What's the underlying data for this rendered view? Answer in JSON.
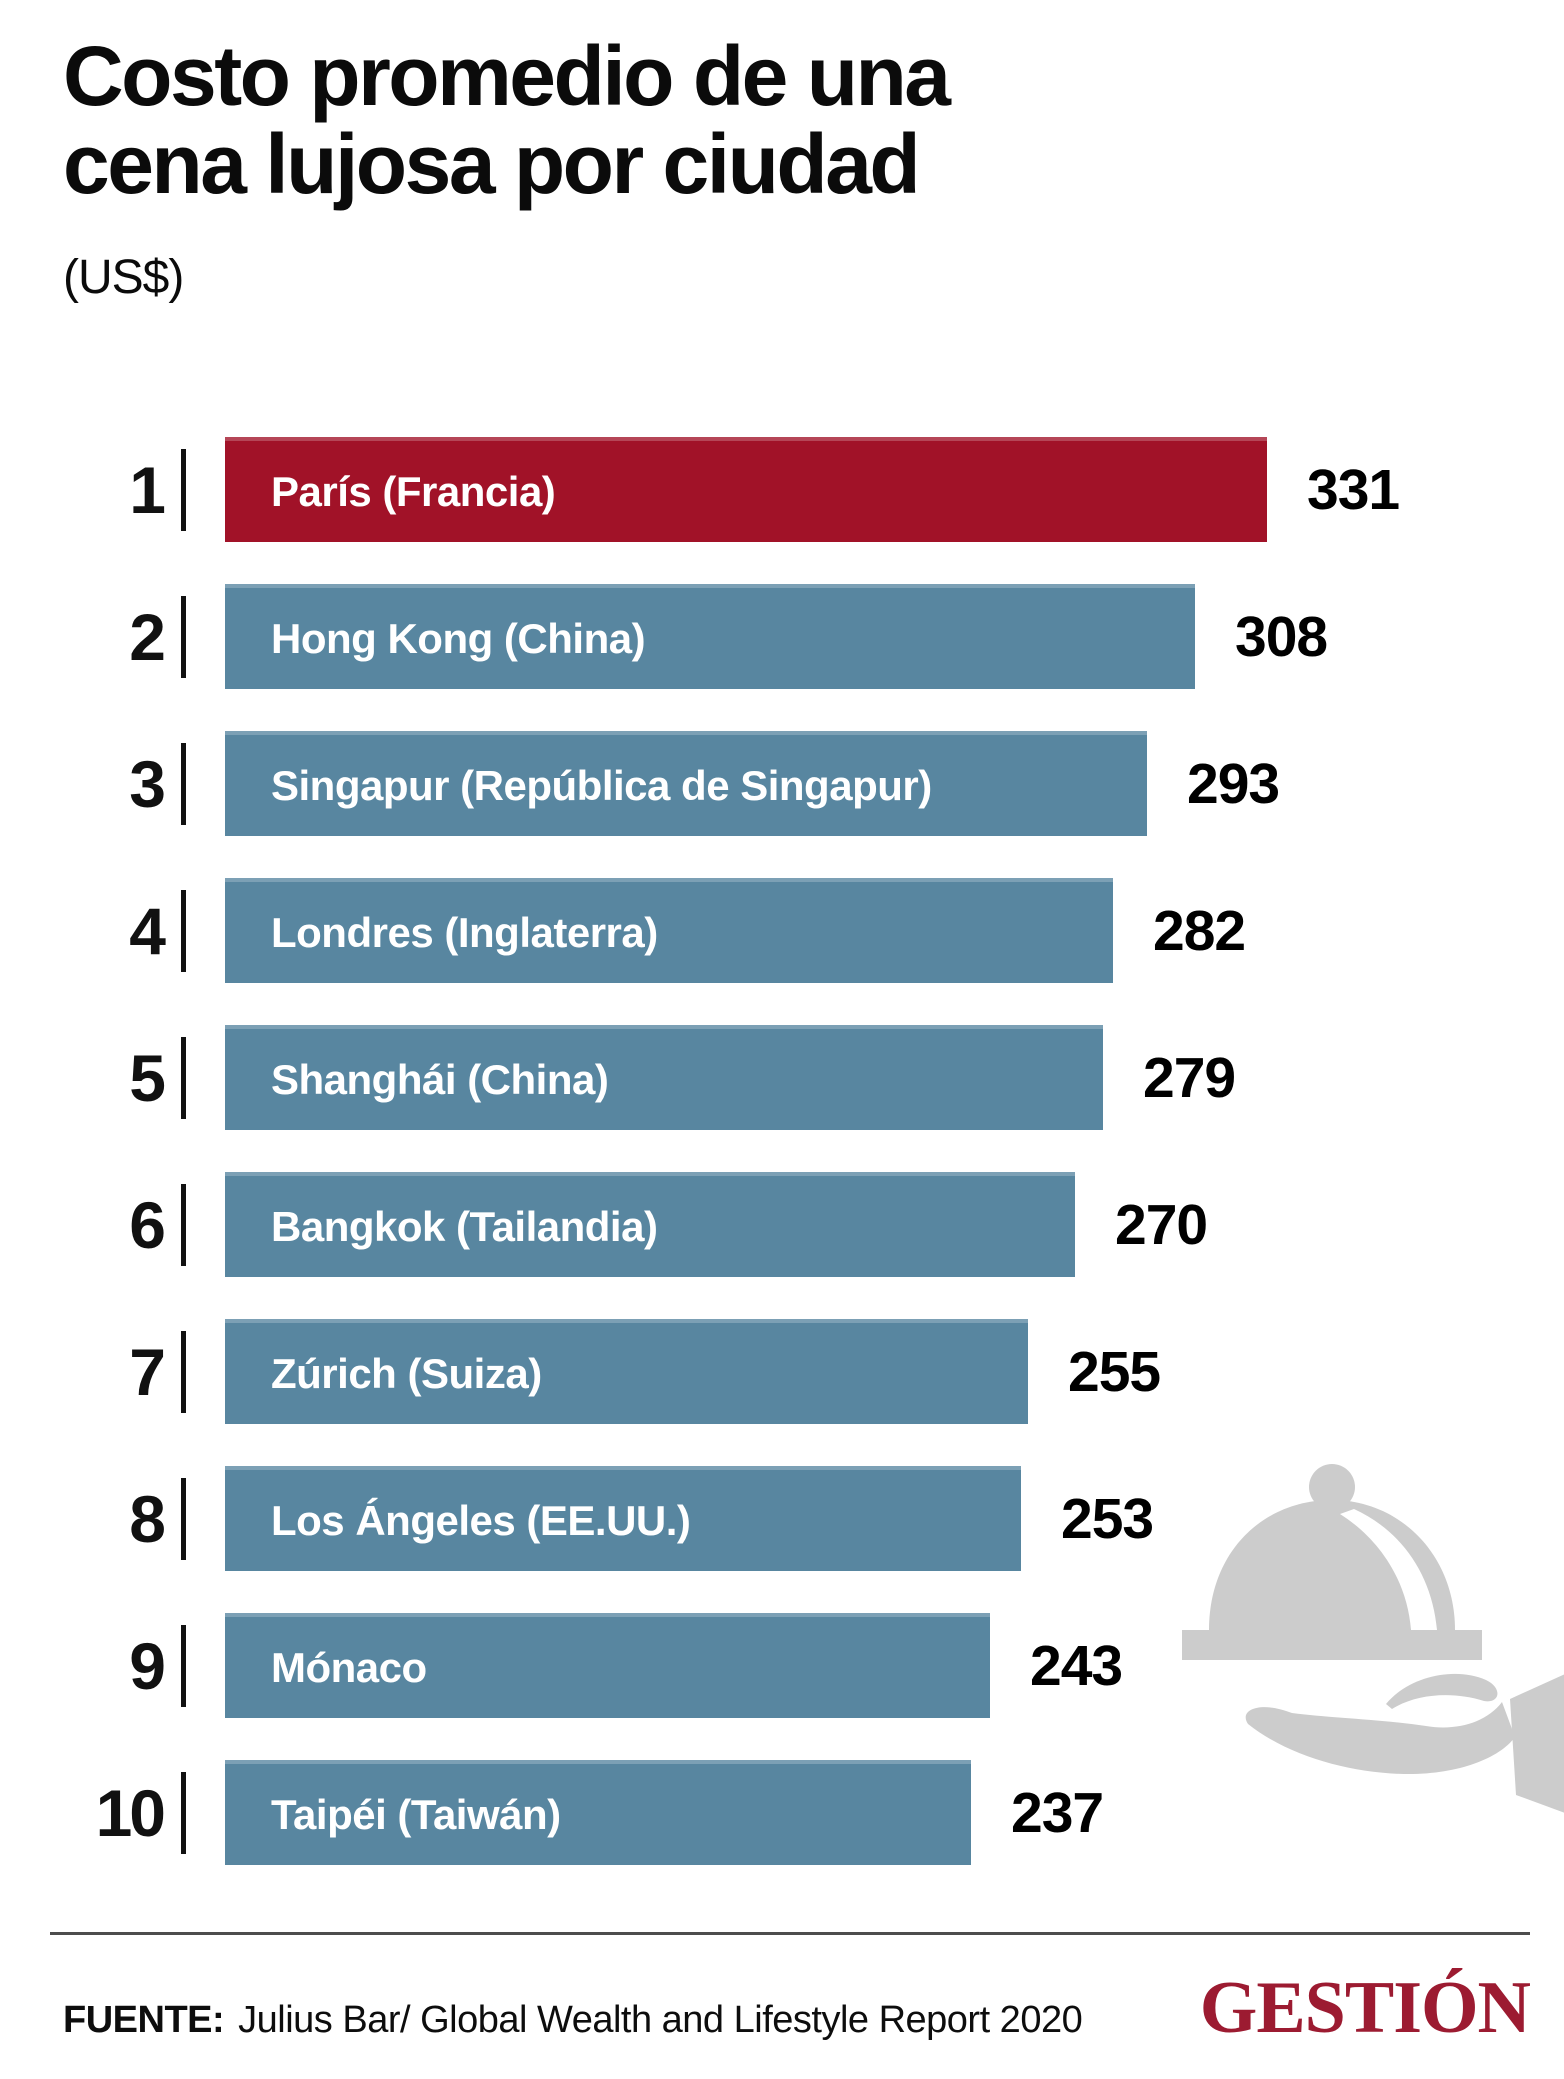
{
  "chart_data": {
    "type": "bar",
    "orientation": "horizontal",
    "title": "Costo promedio de una cena lujosa por ciudad",
    "unit_label": "(US$)",
    "categories": [
      "París (Francia)",
      "Hong Kong (China)",
      "Singapur (República de Singapur)",
      "Londres (Inglaterra)",
      "Shanghái (China)",
      "Bangkok (Tailandia)",
      "Zúrich (Suiza)",
      "Los Ángeles (EE.UU.)",
      "Mónaco",
      "Taipéi (Taiwán)"
    ],
    "values": [
      331,
      308,
      293,
      282,
      279,
      270,
      255,
      253,
      243,
      237
    ],
    "rank_labels": [
      "1",
      "2",
      "3",
      "4",
      "5",
      "6",
      "7",
      "8",
      "9",
      "10"
    ],
    "xlim": [
      0,
      331
    ],
    "grid": false,
    "legend": "none",
    "value_labels": true,
    "highlight": {
      "index": 0,
      "color": "#a11228"
    },
    "bar_color": "#5886a0"
  },
  "footer": {
    "source_label": "FUENTE:",
    "source_text": "Julius Bar/ Global Wealth and Lifestyle Report 2020",
    "brand": "GESTIÓN",
    "brand_color": "#9c1b31"
  },
  "icons": {
    "cloche": "serving-cloche-on-hand-icon",
    "color": "#cccccc"
  }
}
